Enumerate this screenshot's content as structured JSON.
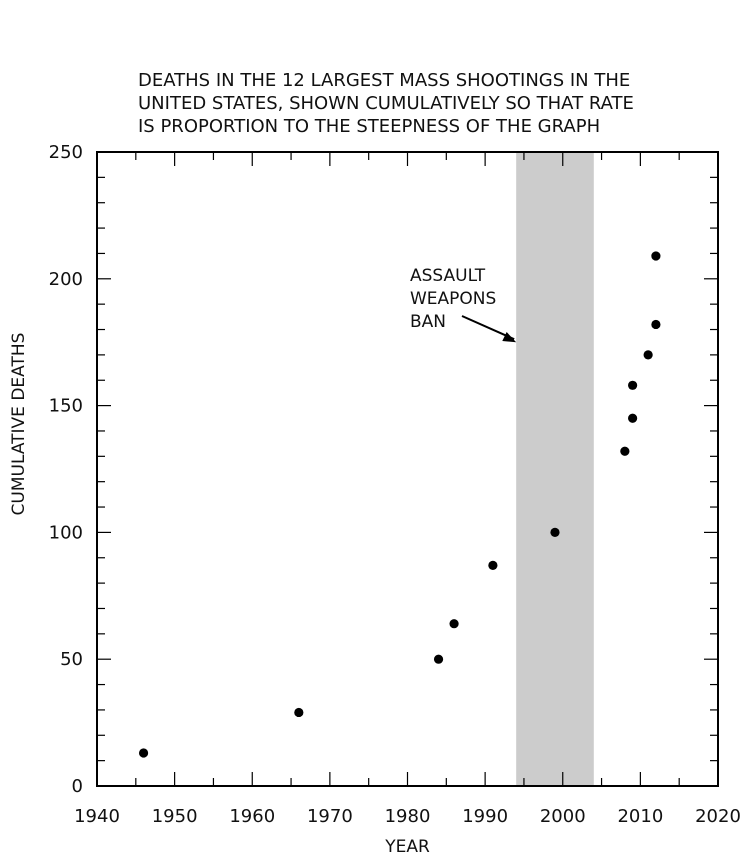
{
  "chart_data": {
    "type": "scatter",
    "title_lines": [
      "DEATHS IN THE 12 LARGEST MASS SHOOTINGS IN THE",
      "UNITED STATES, SHOWN CUMULATIVELY SO THAT RATE",
      "IS PROPORTION TO THE STEEPNESS OF THE GRAPH"
    ],
    "xlabel": "YEAR",
    "ylabel": "CUMULATIVE DEATHS",
    "xlim": [
      1940,
      2020
    ],
    "ylim": [
      0,
      250
    ],
    "x_ticks": [
      1940,
      1950,
      1960,
      1970,
      1980,
      1990,
      2000,
      2010,
      2020
    ],
    "y_ticks": [
      0,
      50,
      100,
      150,
      200,
      250
    ],
    "grid": false,
    "points": [
      {
        "x": 1946,
        "y": 13
      },
      {
        "x": 1966,
        "y": 29
      },
      {
        "x": 1984,
        "y": 50
      },
      {
        "x": 1986,
        "y": 64
      },
      {
        "x": 1991,
        "y": 87
      },
      {
        "x": 1999,
        "y": 100
      },
      {
        "x": 2008,
        "y": 132
      },
      {
        "x": 2009,
        "y": 145
      },
      {
        "x": 2009,
        "y": 158
      },
      {
        "x": 2011,
        "y": 170
      },
      {
        "x": 2012,
        "y": 182
      },
      {
        "x": 2012,
        "y": 209
      }
    ],
    "shaded_region": {
      "x_start": 1994,
      "x_end": 2004,
      "color": "#cccccc"
    },
    "annotation": {
      "lines": [
        "ASSAULT",
        "WEAPONS",
        "BAN"
      ],
      "arrow_to": {
        "x": 1994,
        "y": 175
      }
    },
    "colors": {
      "points": "#000000",
      "axes": "#000000"
    }
  }
}
